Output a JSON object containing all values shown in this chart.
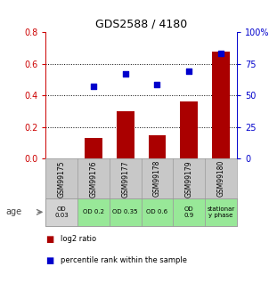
{
  "title": "GDS2588 / 4180",
  "samples": [
    "GSM99175",
    "GSM99176",
    "GSM99177",
    "GSM99178",
    "GSM99179",
    "GSM99180"
  ],
  "log2_ratio": [
    0.0,
    0.13,
    0.3,
    0.15,
    0.36,
    0.68
  ],
  "percentile_rank_pct": [
    null,
    57,
    67,
    59,
    69,
    83
  ],
  "age_labels": [
    "OD\n0.03",
    "OD 0.2",
    "OD 0.35",
    "OD 0.6",
    "OD\n0.9",
    "stationar\ny phase"
  ],
  "age_colors": [
    "#d3d3d3",
    "#98e898",
    "#98e898",
    "#98e898",
    "#98e898",
    "#98e898"
  ],
  "sample_bg_color": "#c8c8c8",
  "bar_color": "#aa0000",
  "scatter_color": "#0000cc",
  "ylim_left": [
    0,
    0.8
  ],
  "ylim_right": [
    0,
    100
  ],
  "yticks_left": [
    0,
    0.2,
    0.4,
    0.6,
    0.8
  ],
  "yticks_right": [
    0,
    25,
    50,
    75,
    100
  ],
  "ylabel_left_color": "#cc0000",
  "ylabel_right_color": "#0000cc",
  "background_color": "#ffffff",
  "legend_log2": "log2 ratio",
  "legend_pct": "percentile rank within the sample",
  "age_label": "age"
}
